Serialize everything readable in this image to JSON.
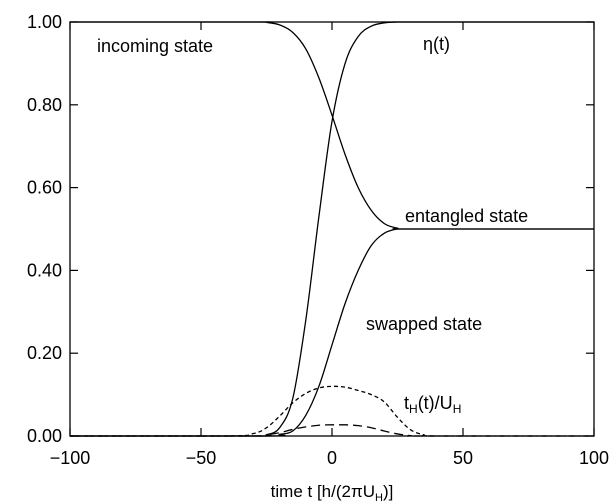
{
  "chart_data": {
    "type": "line",
    "title": "",
    "xlabel": {
      "base": "time t [h/(2",
      "pi": "π",
      "U": "U",
      "sub": "H",
      "tail": ")]"
    },
    "ylabel": "",
    "xlim": [
      -100,
      100
    ],
    "ylim": [
      0,
      1.0
    ],
    "x_ticks": [
      "−100",
      "−50",
      "0",
      "50",
      "100"
    ],
    "x_tick_values": [
      -100,
      -50,
      0,
      50,
      100
    ],
    "y_ticks": [
      "0.00",
      "0.20",
      "0.40",
      "0.60",
      "0.80",
      "1.00"
    ],
    "y_tick_values": [
      0,
      0.2,
      0.4,
      0.6,
      0.8,
      1.0
    ],
    "grid": false,
    "annotations": {
      "incoming": "incoming state",
      "eta_symbol": "η",
      "eta_tail": "(t)",
      "entangled": "entangled state",
      "swapped": "swapped state",
      "th_t": "t",
      "th_sub1": "H",
      "th_mid": "(t)/U",
      "th_sub2": "H"
    },
    "series": [
      {
        "key": "incoming",
        "style": "solid",
        "x": [
          -100,
          -30,
          -25,
          -20,
          -15,
          -10,
          -5,
          0,
          5,
          10,
          15,
          20,
          25,
          30,
          100
        ],
        "y": [
          1.0,
          1.0,
          0.999,
          0.993,
          0.975,
          0.935,
          0.865,
          0.775,
          0.68,
          0.6,
          0.545,
          0.513,
          0.502,
          0.5,
          0.5
        ]
      },
      {
        "key": "eta",
        "style": "solid",
        "x": [
          -100,
          -30,
          -25,
          -20,
          -15,
          -10,
          -5,
          0,
          5,
          10,
          15,
          20,
          25,
          30,
          100
        ],
        "y": [
          0.0,
          0.0,
          0.003,
          0.02,
          0.09,
          0.28,
          0.53,
          0.76,
          0.9,
          0.965,
          0.99,
          0.998,
          1.0,
          1.0,
          1.0
        ]
      },
      {
        "key": "swapped",
        "style": "solid",
        "x": [
          -100,
          -25,
          -20,
          -15,
          -10,
          -5,
          0,
          5,
          10,
          15,
          20,
          25,
          30,
          100
        ],
        "y": [
          0.0,
          0.0,
          0.004,
          0.012,
          0.05,
          0.12,
          0.22,
          0.32,
          0.4,
          0.46,
          0.49,
          0.5,
          0.5,
          0.5
        ]
      },
      {
        "key": "tH",
        "style": "dashed",
        "x": [
          -100,
          -40,
          -30,
          -25,
          -20,
          -15,
          -10,
          -5,
          0,
          5,
          10,
          15,
          20,
          25,
          30,
          35,
          40,
          100
        ],
        "y": [
          0.0,
          0.0,
          0.006,
          0.02,
          0.048,
          0.08,
          0.103,
          0.116,
          0.12,
          0.118,
          0.11,
          0.1,
          0.082,
          0.045,
          0.015,
          0.003,
          0.0,
          0.0
        ]
      },
      {
        "key": "small",
        "style": "longdash",
        "x": [
          -100,
          -30,
          -25,
          -20,
          -15,
          -10,
          -5,
          0,
          5,
          10,
          15,
          20,
          25,
          30,
          35,
          100
        ],
        "y": [
          0.0,
          0.0,
          0.003,
          0.008,
          0.016,
          0.022,
          0.026,
          0.027,
          0.027,
          0.025,
          0.02,
          0.012,
          0.005,
          0.001,
          0.0,
          0.0
        ]
      }
    ]
  }
}
